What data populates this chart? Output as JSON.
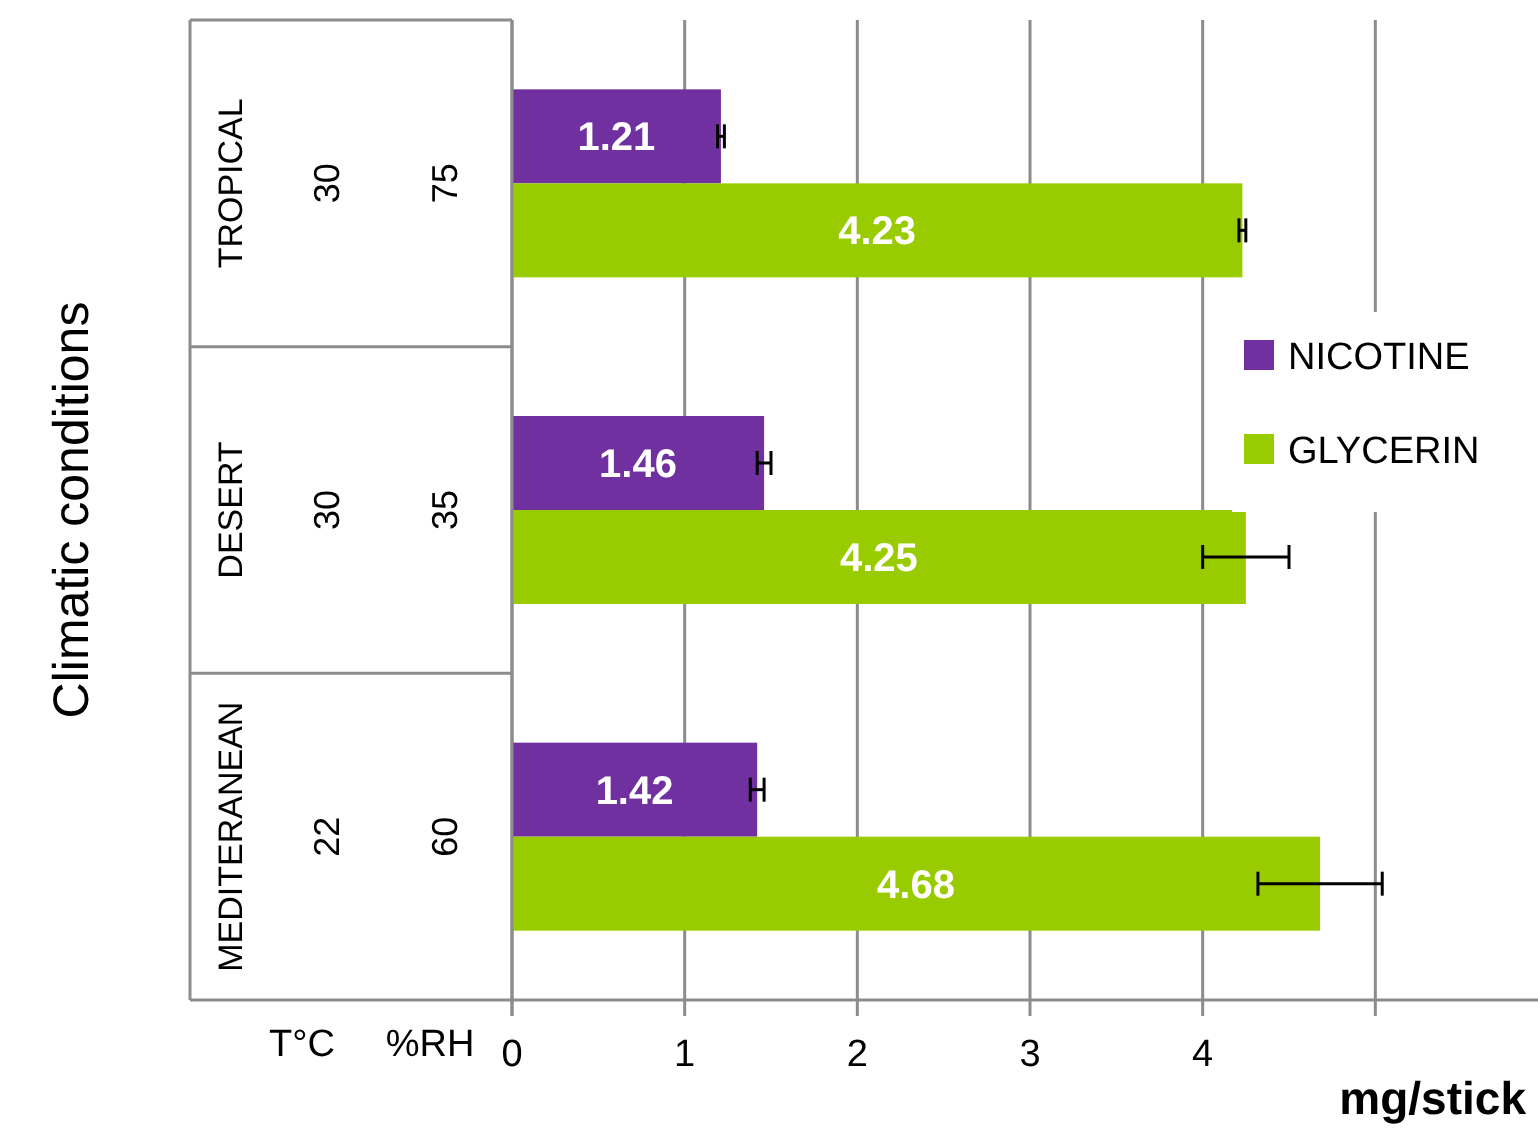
{
  "chart_data": {
    "type": "bar",
    "orientation": "horizontal",
    "ylabel": "Climatic conditions",
    "xlabel": "mg/stick",
    "categories": [
      "TROPICAL",
      "DESERT",
      "MEDITERANEAN"
    ],
    "series": [
      {
        "name": "NICOTINE",
        "color": "#7030a0",
        "values": [
          1.21,
          1.46,
          1.42
        ],
        "errors": [
          0.02,
          0.04,
          0.04
        ]
      },
      {
        "name": "GLYCERIN",
        "color": "#99cc00",
        "values": [
          4.23,
          4.25,
          4.68
        ],
        "errors": [
          0.02,
          0.25,
          0.36
        ]
      }
    ],
    "xlim": [
      0,
      6
    ],
    "xticks": [
      0,
      1,
      2,
      3,
      4,
      {
        "value": 5,
        "label": null
      }
    ],
    "annotations": [
      "T°C",
      "%RH",
      "30",
      "75",
      "30",
      "35",
      "22",
      "60"
    ],
    "data_labels": true,
    "grid": "x",
    "legend": "right"
  }
}
